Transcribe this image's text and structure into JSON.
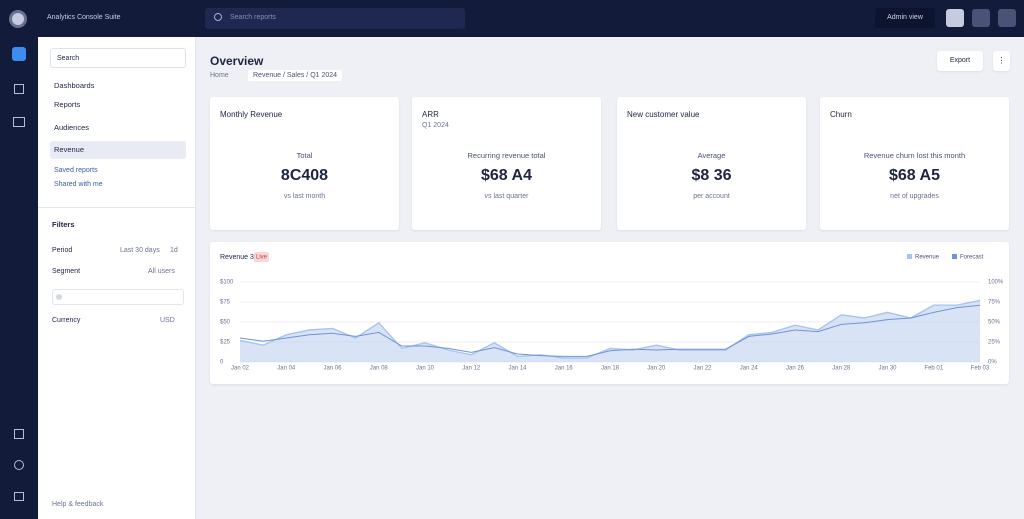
{
  "topbar": {
    "app_name": "Analytics Console Suite",
    "search": "Search reports",
    "account": "Admin view"
  },
  "sidebar": {
    "search": "Search",
    "items": [
      "Dashboards",
      "Reports",
      "Audiences",
      "Revenue"
    ],
    "links": [
      "Saved reports",
      "Shared with me"
    ],
    "filters_title": "Filters",
    "filters": [
      [
        "Period",
        "Last 30 days",
        "1d"
      ],
      [
        "Segment",
        "All users"
      ],
      [
        "Currency",
        "USD"
      ]
    ],
    "footer": "Help & feedback"
  },
  "header": {
    "title": "Overview",
    "tabs": [
      "Home",
      "Revenue / Sales / Q1 2024"
    ],
    "export": "Export",
    "more": "⋮"
  },
  "cards": [
    {
      "label": "Monthly Revenue",
      "sub": "",
      "caption": "Total",
      "value": "8C408",
      "note": "vs last month"
    },
    {
      "label": "ARR",
      "sub": "Q1 2024",
      "caption": "Recurring revenue total",
      "value": "$68 A4",
      "note": "vs last quarter"
    },
    {
      "label": "New customer value",
      "sub": "",
      "caption": "Average",
      "value": "$8 36",
      "note": "per account"
    },
    {
      "label": "Churn",
      "sub": "",
      "caption": "Revenue churn lost this month",
      "value": "$68 A5",
      "note": "net of upgrades"
    }
  ],
  "chart": {
    "type": "line",
    "title": "Revenue 30",
    "badge": "Live",
    "categories": [
      "Jan 02",
      null,
      "Jan 04",
      null,
      "Jan 06",
      null,
      "Jan 08",
      null,
      "Jan 10",
      null,
      "Jan 12",
      null,
      "Jan 14",
      null,
      "Jan 16",
      null,
      "Jan 18",
      null,
      "Jan 20",
      null,
      "Jan 22",
      null,
      "Jan 24",
      null,
      "Jan 26",
      null,
      "Jan 28",
      null,
      "Jan 30",
      null,
      "Feb 01",
      null,
      "Feb 03"
    ],
    "series": [
      {
        "name": "Revenue",
        "color": "#a9c3ec",
        "values": [
          27,
          21,
          34,
          40,
          42,
          30,
          49,
          17,
          24,
          15,
          9,
          24,
          7,
          9,
          5,
          5,
          17,
          15,
          21,
          15,
          15,
          15,
          34,
          37,
          46,
          40,
          59,
          55,
          62,
          55,
          71,
          71,
          77
        ]
      },
      {
        "name": "Forecast",
        "color": "#6f93d6",
        "values": [
          30,
          26,
          30,
          34,
          36,
          32,
          37,
          20,
          20,
          17,
          12,
          18,
          10,
          8,
          7,
          7,
          14,
          16,
          15,
          16,
          16,
          16,
          32,
          35,
          40,
          38,
          47,
          49,
          53,
          55,
          62,
          68,
          71
        ]
      }
    ],
    "ylim": [
      0,
      100
    ],
    "yticks": [
      {
        "value": 0,
        "label": "0"
      },
      {
        "value": 25,
        "label": "$25"
      },
      {
        "value": 50,
        "label": "$50"
      },
      {
        "value": 75,
        "label": "$75"
      },
      {
        "value": 100,
        "label": "$100"
      }
    ],
    "y2ticks": [
      {
        "value": 0,
        "label": "0%"
      },
      {
        "value": 25,
        "label": "25%"
      },
      {
        "value": 50,
        "label": "50%"
      },
      {
        "value": 75,
        "label": "75%"
      },
      {
        "value": 100,
        "label": "100%"
      }
    ],
    "grid": true
  }
}
